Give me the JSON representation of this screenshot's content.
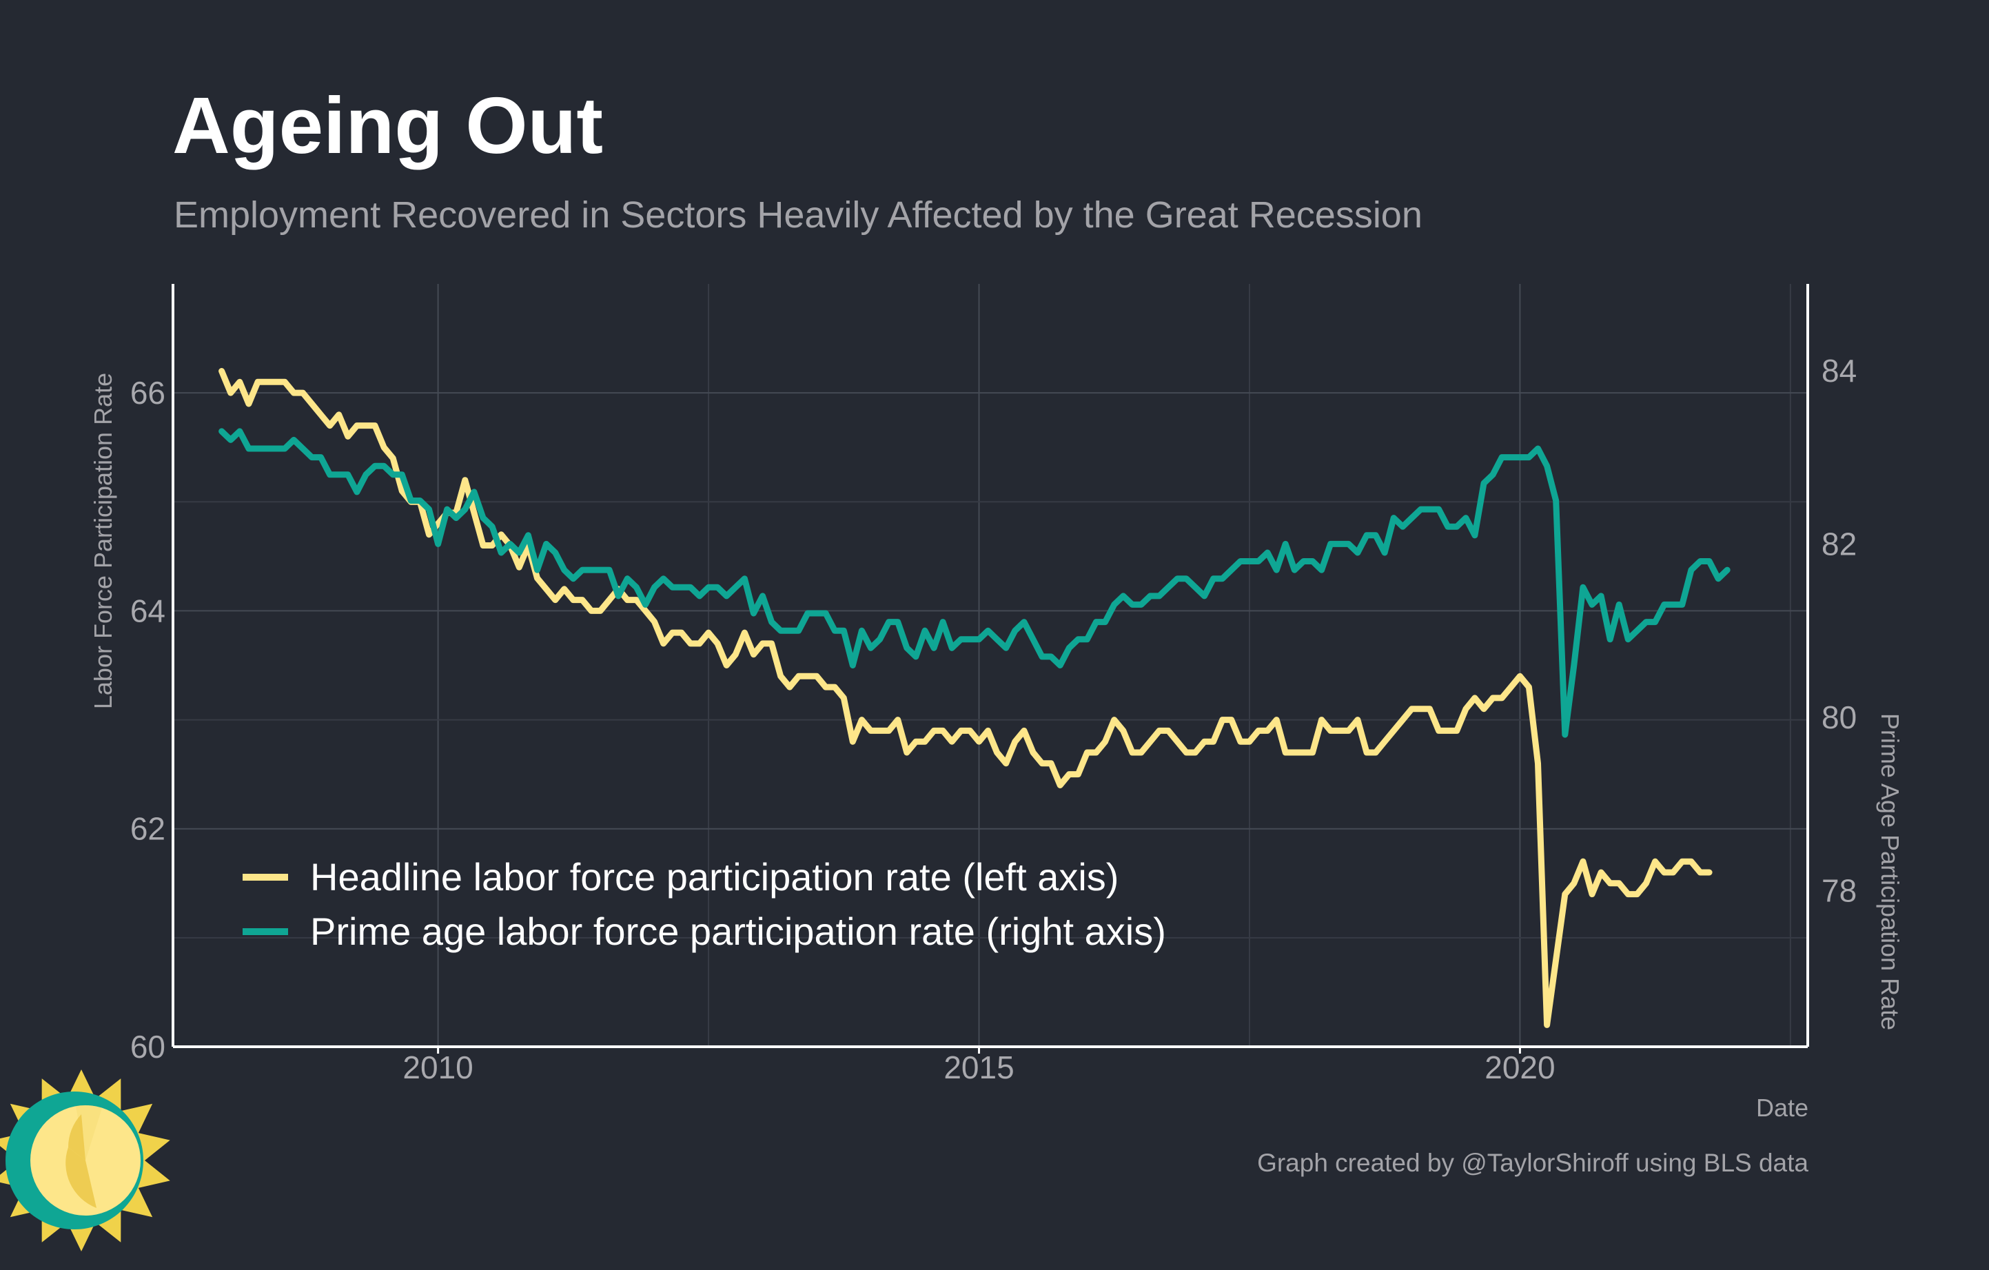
{
  "chart_data": {
    "type": "line",
    "title": "Ageing Out",
    "subtitle": "Employment Recovered in Sectors Heavily Affected by the Great Recession",
    "xlabel": "Date",
    "ylabel": "Labor Force Participation Rate",
    "y2label": "Prime Age Participation Rate",
    "caption": "Graph created by @TaylorShiroff using BLS data",
    "x_ticks": [
      {
        "label": "2010",
        "value": 2010
      },
      {
        "label": "2015",
        "value": 2015
      },
      {
        "label": "2020",
        "value": 2020
      }
    ],
    "y_ticks": [
      "60",
      "62",
      "64",
      "66"
    ],
    "y2_ticks": [
      "78",
      "80",
      "82",
      "84"
    ],
    "xlim": [
      2007.55,
      2022.66
    ],
    "ylim": [
      60,
      67
    ],
    "y2lim": [
      76.2,
      85
    ],
    "grid": true,
    "legend_position": "bottom-left",
    "series": [
      {
        "name": "Headline labor force participation rate (left axis)",
        "axis": "left",
        "color": "#fde68a",
        "x_start": 2008.0,
        "x_step": 0.08333,
        "values": [
          66.2,
          66.0,
          66.1,
          65.9,
          66.1,
          66.1,
          66.1,
          66.1,
          66.0,
          66.0,
          65.9,
          65.8,
          65.7,
          65.8,
          65.6,
          65.7,
          65.7,
          65.7,
          65.5,
          65.4,
          65.1,
          65.0,
          65.0,
          64.7,
          64.8,
          64.9,
          64.9,
          65.2,
          64.9,
          64.6,
          64.6,
          64.7,
          64.6,
          64.4,
          64.6,
          64.3,
          64.2,
          64.1,
          64.2,
          64.1,
          64.1,
          64.0,
          64.0,
          64.1,
          64.2,
          64.1,
          64.1,
          64.0,
          63.9,
          63.7,
          63.8,
          63.8,
          63.7,
          63.7,
          63.8,
          63.7,
          63.5,
          63.6,
          63.8,
          63.6,
          63.7,
          63.7,
          63.4,
          63.3,
          63.4,
          63.4,
          63.4,
          63.3,
          63.3,
          63.2,
          62.8,
          63.0,
          62.9,
          62.9,
          62.9,
          63.0,
          62.7,
          62.8,
          62.8,
          62.9,
          62.9,
          62.8,
          62.9,
          62.9,
          62.8,
          62.9,
          62.7,
          62.6,
          62.8,
          62.9,
          62.7,
          62.6,
          62.6,
          62.4,
          62.5,
          62.5,
          62.7,
          62.7,
          62.8,
          63.0,
          62.9,
          62.7,
          62.7,
          62.8,
          62.9,
          62.9,
          62.8,
          62.7,
          62.7,
          62.8,
          62.8,
          63.0,
          63.0,
          62.8,
          62.8,
          62.9,
          62.9,
          63.0,
          62.7,
          62.7,
          62.7,
          62.7,
          63.0,
          62.9,
          62.9,
          62.9,
          63.0,
          62.7,
          62.7,
          62.8,
          62.9,
          63.0,
          63.1,
          63.1,
          63.1,
          62.9,
          62.9,
          62.9,
          63.1,
          63.2,
          63.1,
          63.2,
          63.2,
          63.3,
          63.4,
          63.3,
          62.6,
          60.2,
          60.8,
          61.4,
          61.5,
          61.7,
          61.4,
          61.6,
          61.5,
          61.5,
          61.4,
          61.4,
          61.5,
          61.7,
          61.6,
          61.6,
          61.7,
          61.7,
          61.6,
          61.6
        ]
      },
      {
        "name": "Prime age labor force participation rate (right axis)",
        "axis": "right",
        "color": "#0fa694",
        "x_start": 2008.0,
        "x_step": 0.08333,
        "values": [
          83.3,
          83.2,
          83.3,
          83.1,
          83.1,
          83.1,
          83.1,
          83.1,
          83.2,
          83.1,
          83.0,
          83.0,
          82.8,
          82.8,
          82.8,
          82.6,
          82.8,
          82.9,
          82.9,
          82.8,
          82.8,
          82.5,
          82.5,
          82.4,
          82.0,
          82.4,
          82.3,
          82.4,
          82.6,
          82.3,
          82.2,
          81.9,
          82.0,
          81.9,
          82.1,
          81.7,
          82.0,
          81.9,
          81.7,
          81.6,
          81.7,
          81.7,
          81.7,
          81.7,
          81.4,
          81.6,
          81.5,
          81.3,
          81.5,
          81.6,
          81.5,
          81.5,
          81.5,
          81.4,
          81.5,
          81.5,
          81.4,
          81.5,
          81.6,
          81.2,
          81.4,
          81.1,
          81.0,
          81.0,
          81.0,
          81.2,
          81.2,
          81.2,
          81.0,
          81.0,
          80.6,
          81.0,
          80.8,
          80.9,
          81.1,
          81.1,
          80.8,
          80.7,
          81.0,
          80.8,
          81.1,
          80.8,
          80.9,
          80.9,
          80.9,
          81.0,
          80.9,
          80.8,
          81.0,
          81.1,
          80.9,
          80.7,
          80.7,
          80.6,
          80.8,
          80.9,
          80.9,
          81.1,
          81.1,
          81.3,
          81.4,
          81.3,
          81.3,
          81.4,
          81.4,
          81.5,
          81.6,
          81.6,
          81.5,
          81.4,
          81.6,
          81.6,
          81.7,
          81.8,
          81.8,
          81.8,
          81.9,
          81.7,
          82.0,
          81.7,
          81.8,
          81.8,
          81.7,
          82.0,
          82.0,
          82.0,
          81.9,
          82.1,
          82.1,
          81.9,
          82.3,
          82.2,
          82.3,
          82.4,
          82.4,
          82.4,
          82.2,
          82.2,
          82.3,
          82.1,
          82.7,
          82.8,
          83.0,
          83.0,
          83.0,
          83.0,
          83.1,
          82.9,
          82.5,
          79.8,
          80.6,
          81.5,
          81.3,
          81.4,
          80.9,
          81.3,
          80.9,
          81.0,
          81.1,
          81.1,
          81.3,
          81.3,
          81.3,
          81.7,
          81.8,
          81.8,
          81.6,
          81.7
        ]
      }
    ]
  }
}
